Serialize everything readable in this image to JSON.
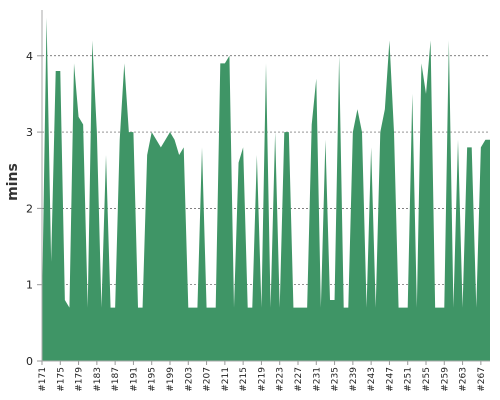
{
  "chart_data": {
    "type": "area",
    "ylabel": "mins",
    "xlabel": "",
    "title": "",
    "ylim": [
      0,
      4.6
    ],
    "yticks": [
      "0",
      "1",
      "2",
      "3",
      "4"
    ],
    "grid": "horizontal-dashed",
    "legend": "none",
    "color": "#3f9566",
    "x_tick_labels": [
      "#171",
      "#175",
      "#179",
      "#183",
      "#187",
      "#191",
      "#195",
      "#199",
      "#203",
      "#207",
      "#211",
      "#215",
      "#219",
      "#223",
      "#227",
      "#231",
      "#235",
      "#239",
      "#243",
      "#247",
      "#251",
      "#255",
      "#259",
      "#263",
      "#267"
    ],
    "x": [
      "#171",
      "#172",
      "#173",
      "#174",
      "#175",
      "#176",
      "#177",
      "#178",
      "#179",
      "#180",
      "#181",
      "#182",
      "#183",
      "#184",
      "#185",
      "#186",
      "#187",
      "#188",
      "#189",
      "#190",
      "#191",
      "#192",
      "#193",
      "#194",
      "#195",
      "#196",
      "#197",
      "#198",
      "#199",
      "#200",
      "#201",
      "#202",
      "#203",
      "#204",
      "#205",
      "#206",
      "#207",
      "#208",
      "#209",
      "#210",
      "#211",
      "#212",
      "#213",
      "#214",
      "#215",
      "#216",
      "#217",
      "#218",
      "#219",
      "#220",
      "#221",
      "#222",
      "#223",
      "#224",
      "#225",
      "#226",
      "#227",
      "#228",
      "#229",
      "#230",
      "#231",
      "#232",
      "#233",
      "#234",
      "#235",
      "#236",
      "#237",
      "#238",
      "#239",
      "#240",
      "#241",
      "#242",
      "#243",
      "#244",
      "#245",
      "#246",
      "#247",
      "#248",
      "#249",
      "#250",
      "#251",
      "#252",
      "#253",
      "#254",
      "#255",
      "#256",
      "#257",
      "#258",
      "#259",
      "#260",
      "#261",
      "#262",
      "#263",
      "#264",
      "#265",
      "#266",
      "#267",
      "#268",
      "#269"
    ],
    "values": [
      0.7,
      4.5,
      1.3,
      3.8,
      3.8,
      0.8,
      0.7,
      3.9,
      3.2,
      3.1,
      0.7,
      4.2,
      3.0,
      0.7,
      2.7,
      0.7,
      0.7,
      2.9,
      3.9,
      3.0,
      3.0,
      0.7,
      0.7,
      2.7,
      3.0,
      2.9,
      2.8,
      2.9,
      3.0,
      2.9,
      2.7,
      2.8,
      0.7,
      0.7,
      0.7,
      2.8,
      0.7,
      0.7,
      0.7,
      3.9,
      3.9,
      4.0,
      0.7,
      2.6,
      2.8,
      0.7,
      0.7,
      2.7,
      0.7,
      3.9,
      0.7,
      3.0,
      0.7,
      3.0,
      3.0,
      0.7,
      0.7,
      0.7,
      0.7,
      3.1,
      3.7,
      0.7,
      2.9,
      0.8,
      0.8,
      4.0,
      0.7,
      0.7,
      3.0,
      3.3,
      3.0,
      0.7,
      2.8,
      0.7,
      3.0,
      3.3,
      4.2,
      3.0,
      0.7,
      0.7,
      0.7,
      3.5,
      0.7,
      3.9,
      3.5,
      4.2,
      0.7,
      0.7,
      0.7,
      4.2,
      0.7,
      2.9,
      0.7,
      2.8,
      2.8,
      0.7,
      2.8,
      2.9,
      2.9
    ]
  }
}
